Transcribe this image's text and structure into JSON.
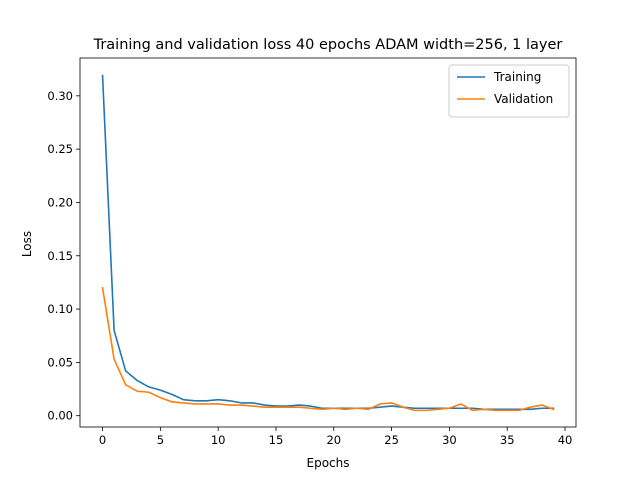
{
  "chart_data": {
    "type": "line",
    "title": "Training and validation loss 40 epochs ADAM width=256, 1 layer",
    "xlabel": "Epochs",
    "ylabel": "Loss",
    "xlim": [
      -1.95,
      40.95
    ],
    "ylim": [
      -0.0106,
      0.3355
    ],
    "xticks": [
      0,
      5,
      10,
      15,
      20,
      25,
      30,
      35,
      40
    ],
    "xtick_labels": [
      "0",
      "5",
      "10",
      "15",
      "20",
      "25",
      "30",
      "35",
      "40"
    ],
    "yticks": [
      0.0,
      0.05,
      0.1,
      0.15,
      0.2,
      0.25,
      0.3
    ],
    "ytick_labels": [
      "0.00",
      "0.05",
      "0.10",
      "0.15",
      "0.20",
      "0.25",
      "0.30"
    ],
    "grid": false,
    "legend_position": "top-right",
    "x": [
      0,
      1,
      2,
      3,
      4,
      5,
      6,
      7,
      8,
      9,
      10,
      11,
      12,
      13,
      14,
      15,
      16,
      17,
      18,
      19,
      20,
      21,
      22,
      23,
      24,
      25,
      26,
      27,
      28,
      29,
      30,
      31,
      32,
      33,
      34,
      35,
      36,
      37,
      38,
      39
    ],
    "series": [
      {
        "name": "Training",
        "color": "#1f77b4",
        "values": [
          0.319,
          0.08,
          0.042,
          0.033,
          0.027,
          0.024,
          0.02,
          0.015,
          0.014,
          0.014,
          0.015,
          0.014,
          0.012,
          0.012,
          0.01,
          0.009,
          0.009,
          0.01,
          0.009,
          0.007,
          0.007,
          0.007,
          0.007,
          0.007,
          0.008,
          0.009,
          0.008,
          0.007,
          0.007,
          0.007,
          0.007,
          0.007,
          0.007,
          0.006,
          0.006,
          0.006,
          0.006,
          0.006,
          0.007,
          0.007
        ]
      },
      {
        "name": "Validation",
        "color": "#ff7f0e",
        "values": [
          0.12,
          0.053,
          0.029,
          0.023,
          0.022,
          0.017,
          0.013,
          0.012,
          0.011,
          0.011,
          0.011,
          0.01,
          0.01,
          0.009,
          0.008,
          0.008,
          0.008,
          0.008,
          0.007,
          0.006,
          0.007,
          0.006,
          0.007,
          0.006,
          0.011,
          0.012,
          0.008,
          0.005,
          0.005,
          0.006,
          0.007,
          0.011,
          0.005,
          0.006,
          0.005,
          0.005,
          0.005,
          0.008,
          0.01,
          0.006
        ]
      }
    ]
  }
}
